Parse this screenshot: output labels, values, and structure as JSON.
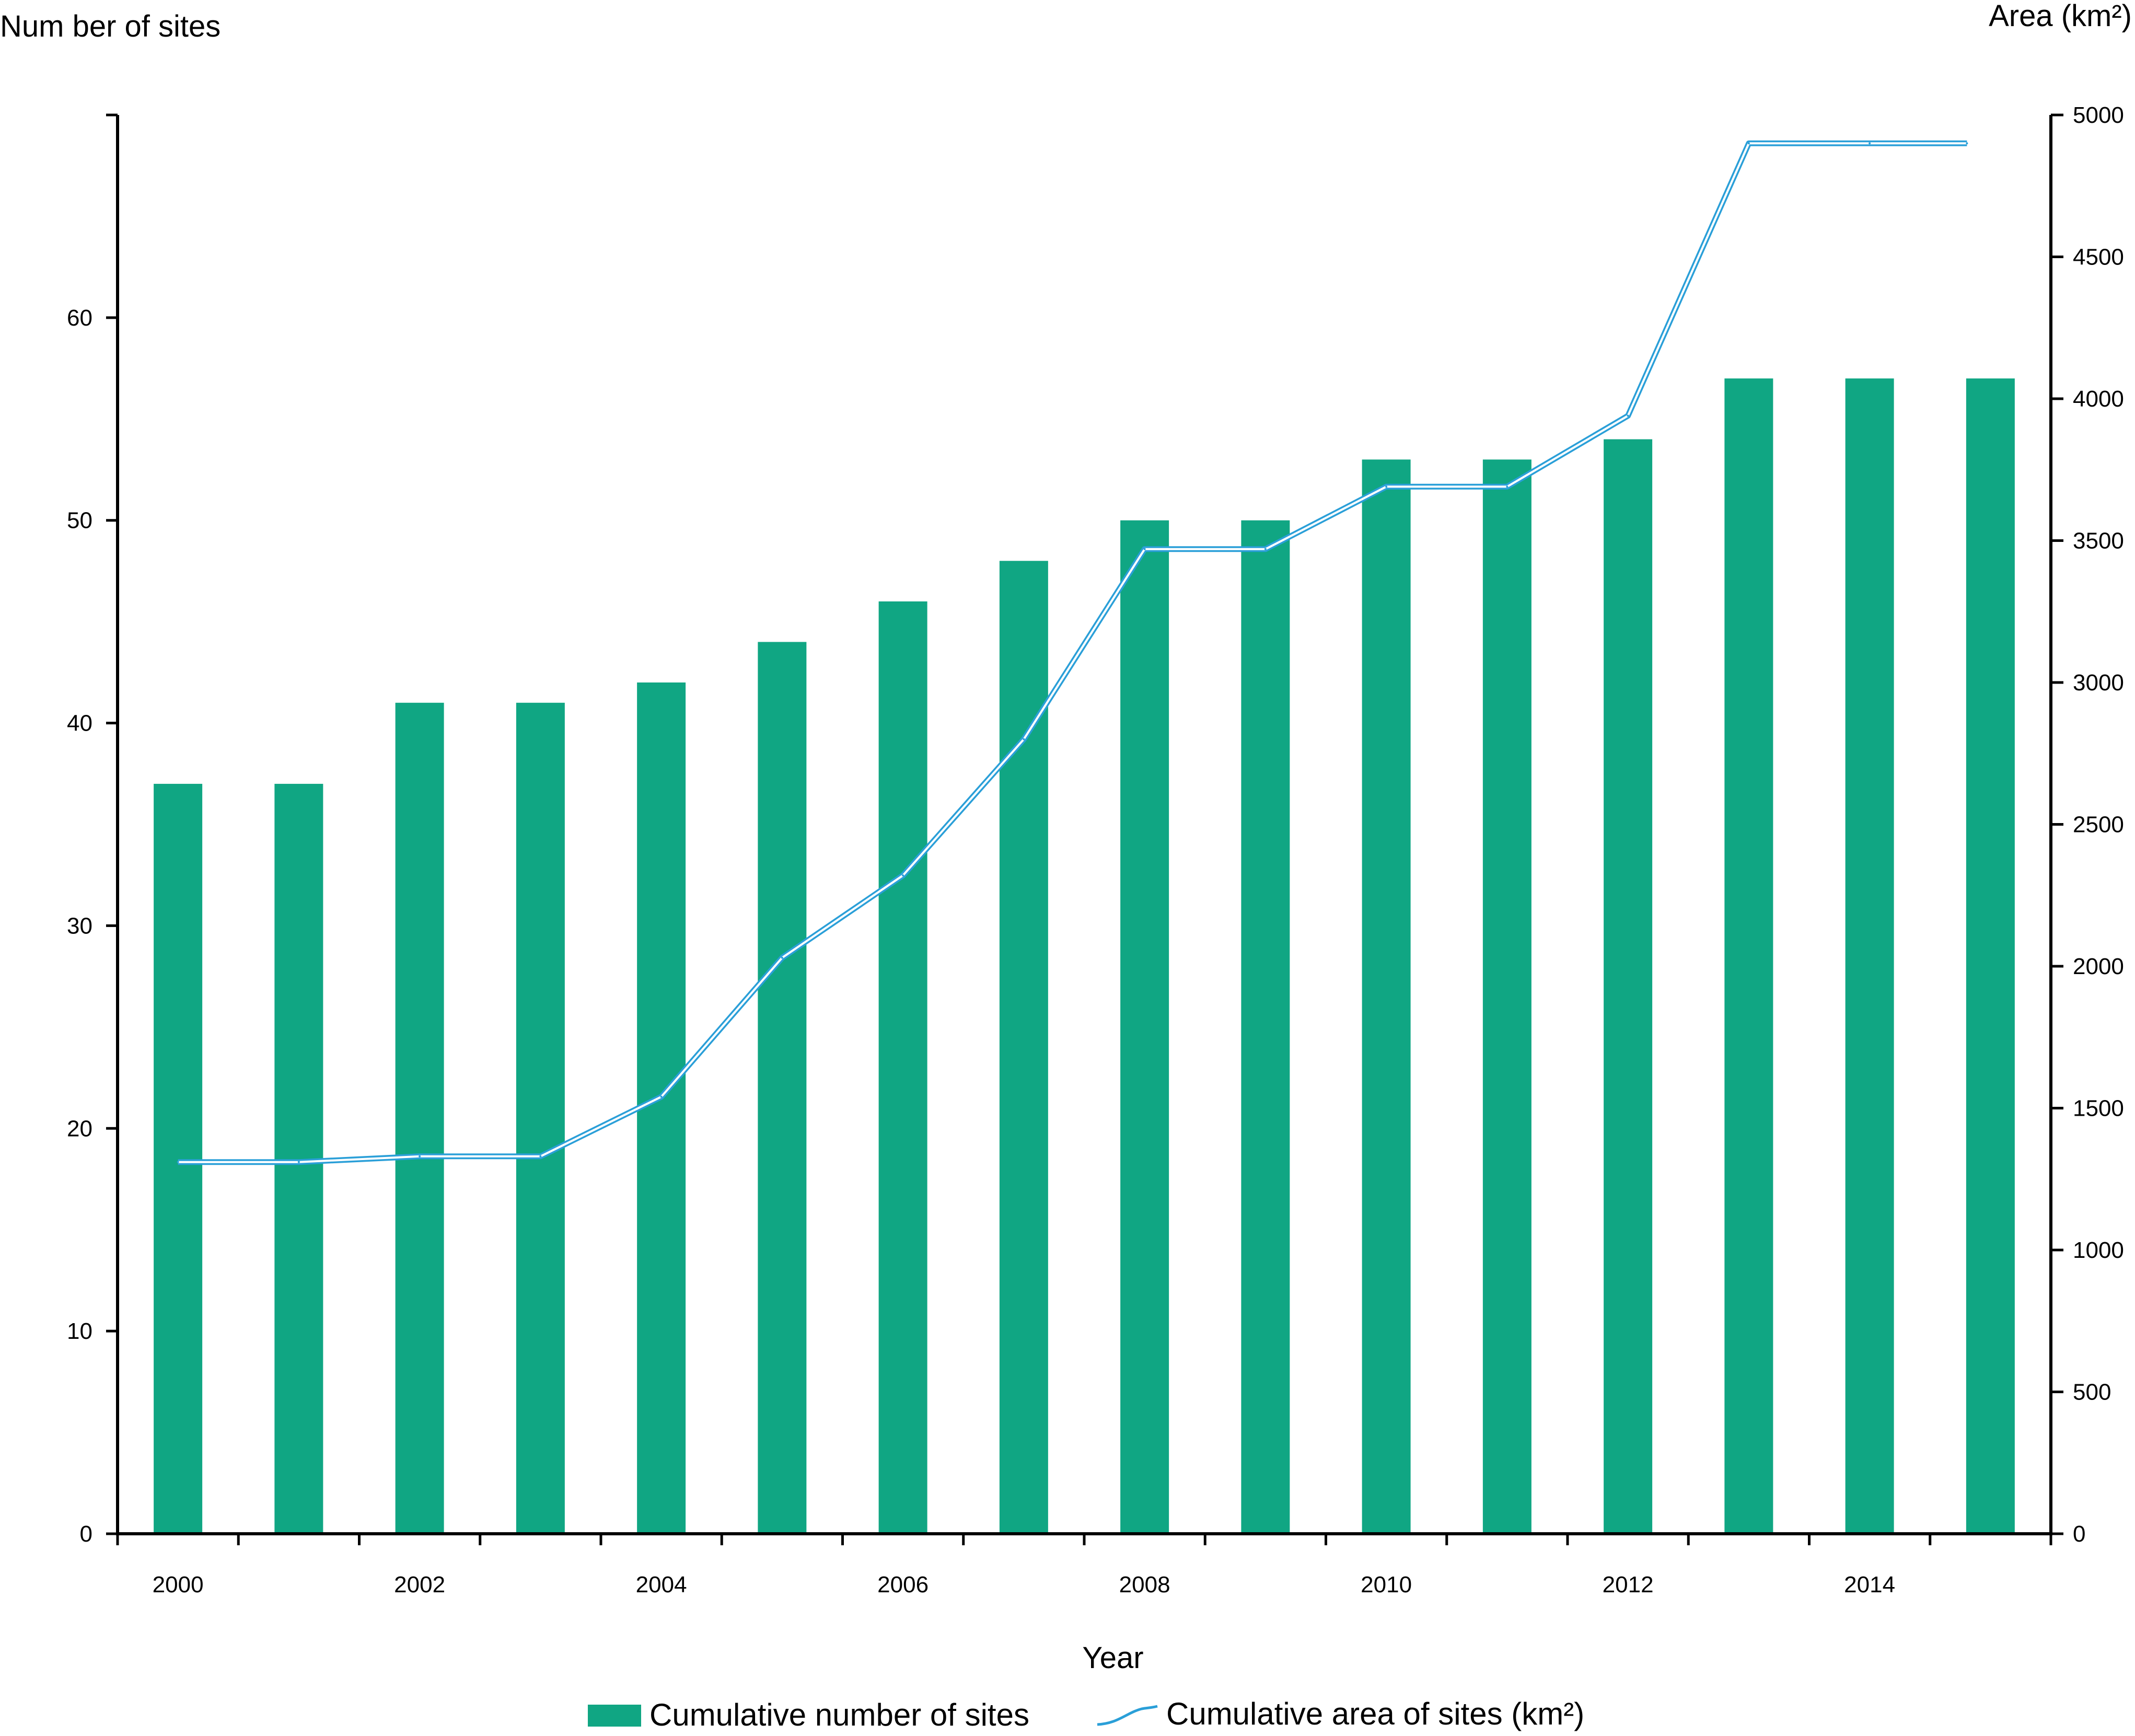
{
  "chart_data": {
    "type": "bar",
    "categories": [
      "2000",
      "2001",
      "2002",
      "2003",
      "2004",
      "2005",
      "2006",
      "2007",
      "2008",
      "2009",
      "2010",
      "2011",
      "2012",
      "2013",
      "2014",
      "2015"
    ],
    "x_tick_labels": [
      "2000",
      "2002",
      "2004",
      "2006",
      "2008",
      "2010",
      "2012",
      "2014"
    ],
    "series": [
      {
        "name": "Cumulative number of sites",
        "type": "bar",
        "axis": "left",
        "color": "#10a683",
        "values": [
          37,
          37,
          41,
          41,
          42,
          44,
          46,
          48,
          50,
          50,
          53,
          53,
          54,
          57,
          57,
          57
        ]
      },
      {
        "name": "Cumulative area of sites (km²)",
        "type": "line",
        "axis": "right",
        "color": "#2a9fd8",
        "values": [
          1310,
          1310,
          1330,
          1330,
          1540,
          2030,
          2320,
          2800,
          3470,
          3470,
          3690,
          3690,
          3940,
          4900,
          4900,
          4900
        ]
      }
    ],
    "xlabel": "Year",
    "ylabel_left": "Num ber of sites",
    "ylabel_right": "Area (km²)",
    "ylim_left": [
      0,
      70
    ],
    "yticks_left": [
      0,
      10,
      20,
      30,
      40,
      50,
      60
    ],
    "ylim_right": [
      0,
      5000
    ],
    "yticks_right": [
      0,
      500,
      1000,
      1500,
      2000,
      2500,
      3000,
      3500,
      4000,
      4500,
      5000
    ],
    "grid": false,
    "legend_position": "bottom"
  }
}
